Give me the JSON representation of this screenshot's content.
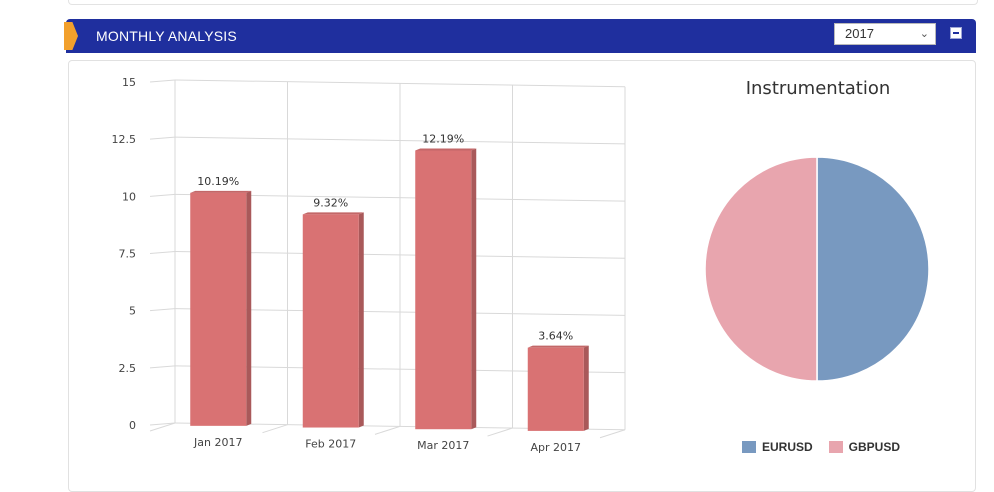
{
  "header": {
    "title": "MONTHLY ANALYSIS",
    "year_selected": "2017",
    "collapse_icon": "minus-icon"
  },
  "colors": {
    "header_bg": "#1f2f9e",
    "accent_tab": "#f2a02c",
    "bar": "#d97273",
    "eurusd": "#7899c0",
    "gbpusd": "#e8a5ae"
  },
  "chart_data": [
    {
      "type": "bar",
      "title": "",
      "xlabel": "",
      "ylabel": "",
      "categories": [
        "Jan 2017",
        "Feb 2017",
        "Mar 2017",
        "Apr 2017"
      ],
      "values": [
        10.19,
        9.32,
        12.19,
        3.64
      ],
      "data_labels": [
        "10.19%",
        "9.32%",
        "12.19%",
        "3.64%"
      ],
      "ylim": [
        0,
        15
      ],
      "yticks": [
        "0",
        "2.5",
        "5",
        "7.5",
        "10",
        "12.5",
        "15"
      ],
      "grid": true,
      "style": "3d"
    },
    {
      "type": "pie",
      "title": "Instrumentation",
      "slices": [
        {
          "name": "EURUSD",
          "value": 50
        },
        {
          "name": "GBPUSD",
          "value": 50
        }
      ],
      "legend_position": "bottom"
    }
  ]
}
